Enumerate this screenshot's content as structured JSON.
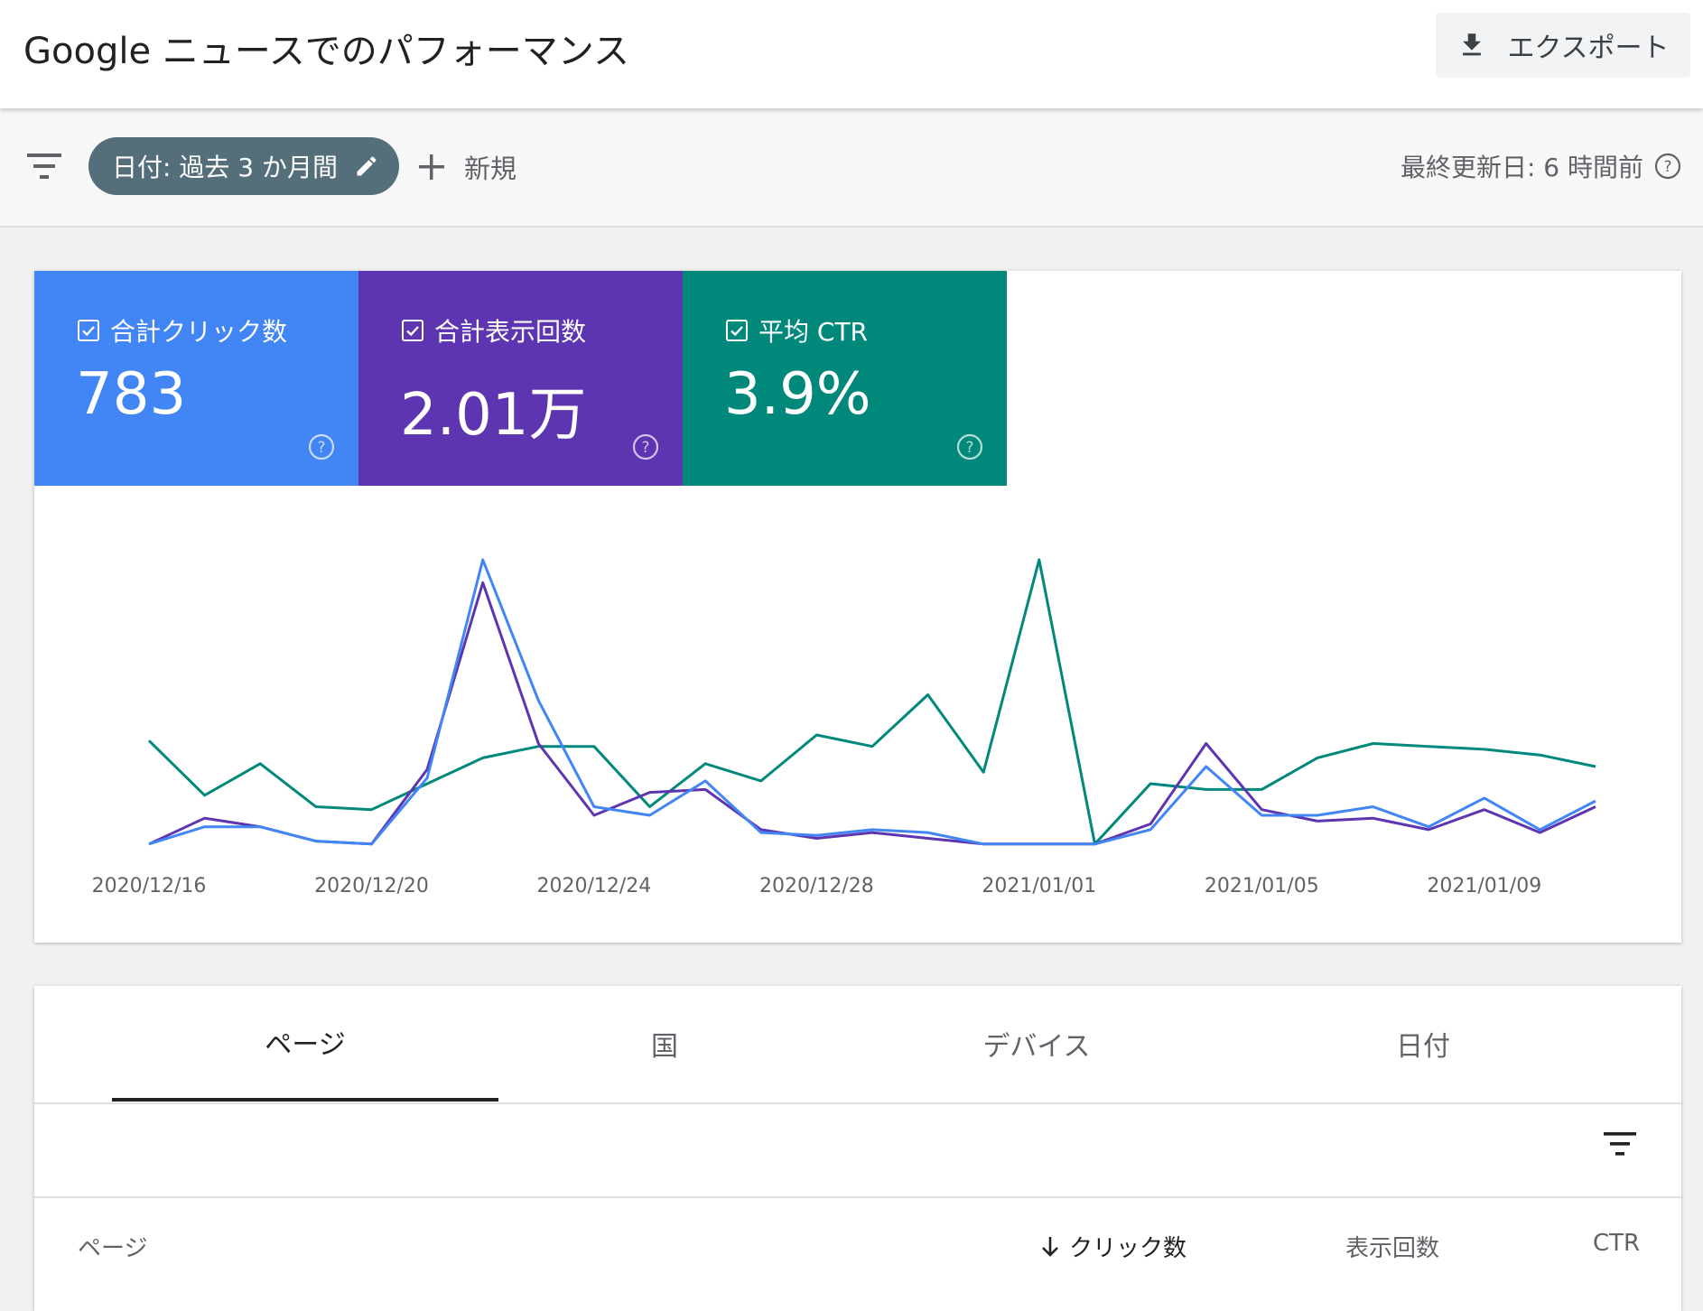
{
  "header": {
    "title": "Google ニュースでのパフォーマンス",
    "export_label": "エクスポート"
  },
  "filters": {
    "date_chip_label": "日付: 過去 3 か月間",
    "new_label": "新規",
    "last_updated": "最終更新日: 6 時間前"
  },
  "metrics": [
    {
      "label": "合計クリック数",
      "value": "783",
      "color": "#4285f4"
    },
    {
      "label": "合計表示回数",
      "value": "2.01万",
      "color": "#5e35b1"
    },
    {
      "label": "平均 CTR",
      "value": "3.9%",
      "color": "#00897b"
    }
  ],
  "chart_data": {
    "type": "line",
    "x": [
      "2020/12/16",
      "2020/12/17",
      "2020/12/18",
      "2020/12/19",
      "2020/12/20",
      "2020/12/21",
      "2020/12/22",
      "2020/12/23",
      "2020/12/24",
      "2020/12/25",
      "2020/12/26",
      "2020/12/27",
      "2020/12/28",
      "2020/12/29",
      "2020/12/30",
      "2020/12/31",
      "2021/01/01",
      "2021/01/02",
      "2021/01/03",
      "2021/01/04",
      "2021/01/05",
      "2021/01/06",
      "2021/01/07",
      "2021/01/08",
      "2021/01/09",
      "2021/01/10",
      "2021/01/11"
    ],
    "tick_labels": [
      "2020/12/16",
      "2020/12/20",
      "2020/12/24",
      "2020/12/28",
      "2021/01/01",
      "2021/01/05",
      "2021/01/09"
    ],
    "grid": false,
    "series": [
      {
        "color": "#00897b",
        "values": [
          37,
          18,
          29,
          14,
          13,
          22,
          31,
          35,
          35,
          14,
          29,
          23,
          39,
          35,
          53,
          26,
          100,
          1,
          22,
          20,
          20,
          31,
          36,
          35,
          34,
          32,
          28
        ]
      },
      {
        "color": "#5e35b1",
        "values": [
          1,
          10,
          7,
          2,
          1,
          27,
          92,
          36,
          11,
          19,
          20,
          6,
          3,
          5,
          3,
          1,
          1,
          1,
          8,
          36,
          13,
          9,
          10,
          6,
          13,
          5,
          14
        ]
      },
      {
        "color": "#4285f4",
        "values": [
          1,
          7,
          7,
          2,
          1,
          24,
          100,
          51,
          14,
          11,
          23,
          5,
          4,
          6,
          5,
          1,
          1,
          1,
          6,
          28,
          11,
          11,
          14,
          7,
          17,
          6,
          16
        ]
      }
    ]
  },
  "tabs": [
    "ページ",
    "国",
    "デバイス",
    "日付"
  ],
  "table": {
    "columns": {
      "page": "ページ",
      "clicks": "クリック数",
      "impressions": "表示回数",
      "ctr": "CTR"
    }
  }
}
